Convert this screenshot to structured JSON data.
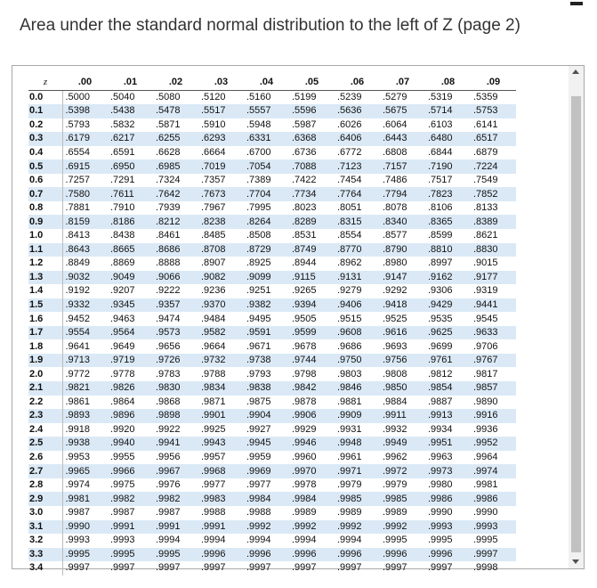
{
  "page": {
    "title": "Area under the standard normal distribution to the left of Z (page 2)"
  },
  "table": {
    "corner_label": "z",
    "columns": [
      ".00",
      ".01",
      ".02",
      ".03",
      ".04",
      ".05",
      ".06",
      ".07",
      ".08",
      ".09"
    ],
    "rows": [
      {
        "z": "0.0",
        "values": [
          ".5000",
          ".5040",
          ".5080",
          ".5120",
          ".5160",
          ".5199",
          ".5239",
          ".5279",
          ".5319",
          ".5359"
        ]
      },
      {
        "z": "0.1",
        "values": [
          ".5398",
          ".5438",
          ".5478",
          ".5517",
          ".5557",
          ".5596",
          ".5636",
          ".5675",
          ".5714",
          ".5753"
        ]
      },
      {
        "z": "0.2",
        "values": [
          ".5793",
          ".5832",
          ".5871",
          ".5910",
          ".5948",
          ".5987",
          ".6026",
          ".6064",
          ".6103",
          ".6141"
        ]
      },
      {
        "z": "0.3",
        "values": [
          ".6179",
          ".6217",
          ".6255",
          ".6293",
          ".6331",
          ".6368",
          ".6406",
          ".6443",
          ".6480",
          ".6517"
        ]
      },
      {
        "z": "0.4",
        "values": [
          ".6554",
          ".6591",
          ".6628",
          ".6664",
          ".6700",
          ".6736",
          ".6772",
          ".6808",
          ".6844",
          ".6879"
        ]
      },
      {
        "z": "0.5",
        "values": [
          ".6915",
          ".6950",
          ".6985",
          ".7019",
          ".7054",
          ".7088",
          ".7123",
          ".7157",
          ".7190",
          ".7224"
        ]
      },
      {
        "z": "0.6",
        "values": [
          ".7257",
          ".7291",
          ".7324",
          ".7357",
          ".7389",
          ".7422",
          ".7454",
          ".7486",
          ".7517",
          ".7549"
        ]
      },
      {
        "z": "0.7",
        "values": [
          ".7580",
          ".7611",
          ".7642",
          ".7673",
          ".7704",
          ".7734",
          ".7764",
          ".7794",
          ".7823",
          ".7852"
        ]
      },
      {
        "z": "0.8",
        "values": [
          ".7881",
          ".7910",
          ".7939",
          ".7967",
          ".7995",
          ".8023",
          ".8051",
          ".8078",
          ".8106",
          ".8133"
        ]
      },
      {
        "z": "0.9",
        "values": [
          ".8159",
          ".8186",
          ".8212",
          ".8238",
          ".8264",
          ".8289",
          ".8315",
          ".8340",
          ".8365",
          ".8389"
        ]
      },
      {
        "z": "1.0",
        "values": [
          ".8413",
          ".8438",
          ".8461",
          ".8485",
          ".8508",
          ".8531",
          ".8554",
          ".8577",
          ".8599",
          ".8621"
        ]
      },
      {
        "z": "1.1",
        "values": [
          ".8643",
          ".8665",
          ".8686",
          ".8708",
          ".8729",
          ".8749",
          ".8770",
          ".8790",
          ".8810",
          ".8830"
        ]
      },
      {
        "z": "1.2",
        "values": [
          ".8849",
          ".8869",
          ".8888",
          ".8907",
          ".8925",
          ".8944",
          ".8962",
          ".8980",
          ".8997",
          ".9015"
        ]
      },
      {
        "z": "1.3",
        "values": [
          ".9032",
          ".9049",
          ".9066",
          ".9082",
          ".9099",
          ".9115",
          ".9131",
          ".9147",
          ".9162",
          ".9177"
        ]
      },
      {
        "z": "1.4",
        "values": [
          ".9192",
          ".9207",
          ".9222",
          ".9236",
          ".9251",
          ".9265",
          ".9279",
          ".9292",
          ".9306",
          ".9319"
        ]
      },
      {
        "z": "1.5",
        "values": [
          ".9332",
          ".9345",
          ".9357",
          ".9370",
          ".9382",
          ".9394",
          ".9406",
          ".9418",
          ".9429",
          ".9441"
        ]
      },
      {
        "z": "1.6",
        "values": [
          ".9452",
          ".9463",
          ".9474",
          ".9484",
          ".9495",
          ".9505",
          ".9515",
          ".9525",
          ".9535",
          ".9545"
        ]
      },
      {
        "z": "1.7",
        "values": [
          ".9554",
          ".9564",
          ".9573",
          ".9582",
          ".9591",
          ".9599",
          ".9608",
          ".9616",
          ".9625",
          ".9633"
        ]
      },
      {
        "z": "1.8",
        "values": [
          ".9641",
          ".9649",
          ".9656",
          ".9664",
          ".9671",
          ".9678",
          ".9686",
          ".9693",
          ".9699",
          ".9706"
        ]
      },
      {
        "z": "1.9",
        "values": [
          ".9713",
          ".9719",
          ".9726",
          ".9732",
          ".9738",
          ".9744",
          ".9750",
          ".9756",
          ".9761",
          ".9767"
        ]
      },
      {
        "z": "2.0",
        "values": [
          ".9772",
          ".9778",
          ".9783",
          ".9788",
          ".9793",
          ".9798",
          ".9803",
          ".9808",
          ".9812",
          ".9817"
        ]
      },
      {
        "z": "2.1",
        "values": [
          ".9821",
          ".9826",
          ".9830",
          ".9834",
          ".9838",
          ".9842",
          ".9846",
          ".9850",
          ".9854",
          ".9857"
        ]
      },
      {
        "z": "2.2",
        "values": [
          ".9861",
          ".9864",
          ".9868",
          ".9871",
          ".9875",
          ".9878",
          ".9881",
          ".9884",
          ".9887",
          ".9890"
        ]
      },
      {
        "z": "2.3",
        "values": [
          ".9893",
          ".9896",
          ".9898",
          ".9901",
          ".9904",
          ".9906",
          ".9909",
          ".9911",
          ".9913",
          ".9916"
        ]
      },
      {
        "z": "2.4",
        "values": [
          ".9918",
          ".9920",
          ".9922",
          ".9925",
          ".9927",
          ".9929",
          ".9931",
          ".9932",
          ".9934",
          ".9936"
        ]
      },
      {
        "z": "2.5",
        "values": [
          ".9938",
          ".9940",
          ".9941",
          ".9943",
          ".9945",
          ".9946",
          ".9948",
          ".9949",
          ".9951",
          ".9952"
        ]
      },
      {
        "z": "2.6",
        "values": [
          ".9953",
          ".9955",
          ".9956",
          ".9957",
          ".9959",
          ".9960",
          ".9961",
          ".9962",
          ".9963",
          ".9964"
        ]
      },
      {
        "z": "2.7",
        "values": [
          ".9965",
          ".9966",
          ".9967",
          ".9968",
          ".9969",
          ".9970",
          ".9971",
          ".9972",
          ".9973",
          ".9974"
        ]
      },
      {
        "z": "2.8",
        "values": [
          ".9974",
          ".9975",
          ".9976",
          ".9977",
          ".9977",
          ".9978",
          ".9979",
          ".9979",
          ".9980",
          ".9981"
        ]
      },
      {
        "z": "2.9",
        "values": [
          ".9981",
          ".9982",
          ".9982",
          ".9983",
          ".9984",
          ".9984",
          ".9985",
          ".9985",
          ".9986",
          ".9986"
        ]
      },
      {
        "z": "3.0",
        "values": [
          ".9987",
          ".9987",
          ".9987",
          ".9988",
          ".9988",
          ".9989",
          ".9989",
          ".9989",
          ".9990",
          ".9990"
        ]
      },
      {
        "z": "3.1",
        "values": [
          ".9990",
          ".9991",
          ".9991",
          ".9991",
          ".9992",
          ".9992",
          ".9992",
          ".9992",
          ".9993",
          ".9993"
        ]
      },
      {
        "z": "3.2",
        "values": [
          ".9993",
          ".9993",
          ".9994",
          ".9994",
          ".9994",
          ".9994",
          ".9994",
          ".9995",
          ".9995",
          ".9995"
        ]
      },
      {
        "z": "3.3",
        "values": [
          ".9995",
          ".9995",
          ".9995",
          ".9996",
          ".9996",
          ".9996",
          ".9996",
          ".9996",
          ".9996",
          ".9997"
        ]
      },
      {
        "z": "3.4",
        "values": [
          ".9997",
          ".9997",
          ".9997",
          ".9997",
          ".9997",
          ".9997",
          ".9997",
          ".9997",
          ".9997",
          ".9998"
        ]
      }
    ]
  },
  "colors": {
    "row_shade": "#dbe9f6",
    "text": "#111111",
    "title": "#333333"
  }
}
